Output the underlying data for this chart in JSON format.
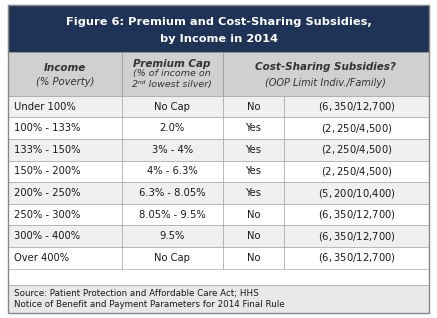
{
  "title_line1": "Figure 6: Premium and Cost-Sharing Subsidies,",
  "title_line2": "by Income in 2014",
  "title_bg": "#1e3355",
  "title_fg": "#ffffff",
  "header_bg": "#d0d0d0",
  "header_fg": "#333333",
  "border_color": "#aaaaaa",
  "rows": [
    [
      "Under 100%",
      "No Cap",
      "No",
      "($6,350 / $12,700)"
    ],
    [
      "100% - 133%",
      "2.0%",
      "Yes",
      "($2,250 / $4,500)"
    ],
    [
      "133% - 150%",
      "3% - 4%",
      "Yes",
      "($2,250 / $4,500)"
    ],
    [
      "150% - 200%",
      "4% - 6.3%",
      "Yes",
      "($2,250 / $4,500)"
    ],
    [
      "200% - 250%",
      "6.3% - 8.05%",
      "Yes",
      "($5,200 / $10,400)"
    ],
    [
      "250% - 300%",
      "8.05% - 9.5%",
      "No",
      "($6,350 / $12,700)"
    ],
    [
      "300% - 400%",
      "9.5%",
      "No",
      "($6,350 / $12,700)"
    ],
    [
      "Over 400%",
      "No Cap",
      "No",
      "($6,350 / $12,700)"
    ]
  ],
  "row_bg_even": "#f0f0f0",
  "row_bg_odd": "#ffffff",
  "source_text": "Source: Patient Protection and Affordable Care Act; HHS\nNotice of Benefit and Payment Parameters for 2014 Final Rule",
  "source_bg": "#e8e8e8",
  "figsize": [
    4.37,
    3.18
  ],
  "dpi": 100
}
